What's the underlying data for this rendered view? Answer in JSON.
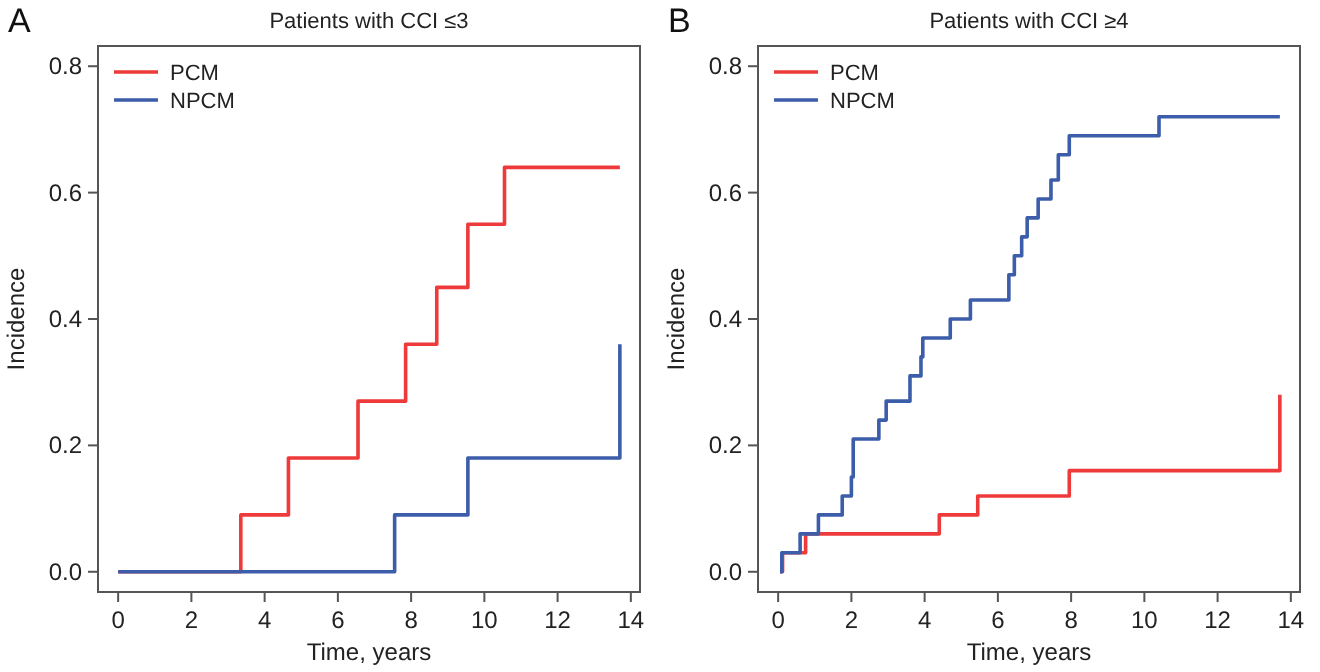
{
  "chart_data": [
    {
      "type": "step",
      "title": "Patients with CCI ≤3",
      "annotations": [
        "A"
      ],
      "xlabel": "Time, years",
      "ylabel": "Incidence",
      "xlim": [
        -0.55,
        14.25
      ],
      "ylim": [
        -0.032,
        0.832
      ],
      "xticks": [
        0,
        2,
        4,
        6,
        8,
        10,
        12,
        14
      ],
      "yticks": [
        {
          "value": 0,
          "label": "0.0"
        },
        {
          "value": 0.2,
          "label": "0.2"
        },
        {
          "value": 0.4,
          "label": "0.4"
        },
        {
          "value": 0.6,
          "label": "0.6"
        },
        {
          "value": 0.8,
          "label": "0.8"
        }
      ],
      "grid": false,
      "legend": "top left",
      "line_style": "solid",
      "series": [
        {
          "name": "PCM",
          "color": "#ee3a3a",
          "x": [
            0,
            3.35,
            4.65,
            6.55,
            7.85,
            8.7,
            9.55,
            10.55,
            13.7
          ],
          "values": [
            0,
            0.09,
            0.18,
            0.27,
            0.36,
            0.45,
            0.55,
            0.64,
            0.64
          ]
        },
        {
          "name": "NPCM",
          "color": "#3c5daa",
          "x": [
            0,
            7.55,
            9.55,
            13.7
          ],
          "values": [
            0,
            0.09,
            0.18,
            0.36
          ]
        }
      ]
    },
    {
      "type": "step",
      "title": "Patients with CCI ≥4",
      "annotations": [
        "B"
      ],
      "xlabel": "Time, years",
      "ylabel": "Incidence",
      "xlim": [
        -0.55,
        14.25
      ],
      "ylim": [
        -0.032,
        0.832
      ],
      "xticks": [
        0,
        2,
        4,
        6,
        8,
        10,
        12,
        14
      ],
      "yticks": [
        {
          "value": 0,
          "label": "0.0"
        },
        {
          "value": 0.2,
          "label": "0.2"
        },
        {
          "value": 0.4,
          "label": "0.4"
        },
        {
          "value": 0.6,
          "label": "0.6"
        },
        {
          "value": 0.8,
          "label": "0.8"
        }
      ],
      "grid": false,
      "legend": "top left",
      "line_style": "solid",
      "series": [
        {
          "name": "PCM",
          "color": "#ee3a3a",
          "x": [
            0.05,
            0.12,
            0.75,
            4.4,
            5.45,
            7.95,
            13.7
          ],
          "values": [
            0,
            0.03,
            0.06,
            0.09,
            0.12,
            0.16,
            0.28
          ]
        },
        {
          "name": "NPCM",
          "color": "#3c5daa",
          "x": [
            0.05,
            0.1,
            0.6,
            1.1,
            1.75,
            2.0,
            2.05,
            2.75,
            2.95,
            3.6,
            3.9,
            3.95,
            4.7,
            5.25,
            6.3,
            6.45,
            6.65,
            6.8,
            7.1,
            7.45,
            7.65,
            7.95,
            10.4,
            13.7
          ],
          "values": [
            0,
            0.03,
            0.06,
            0.09,
            0.12,
            0.15,
            0.21,
            0.24,
            0.27,
            0.31,
            0.34,
            0.37,
            0.4,
            0.43,
            0.47,
            0.5,
            0.53,
            0.56,
            0.59,
            0.62,
            0.66,
            0.69,
            0.72,
            0.72
          ]
        }
      ]
    }
  ]
}
